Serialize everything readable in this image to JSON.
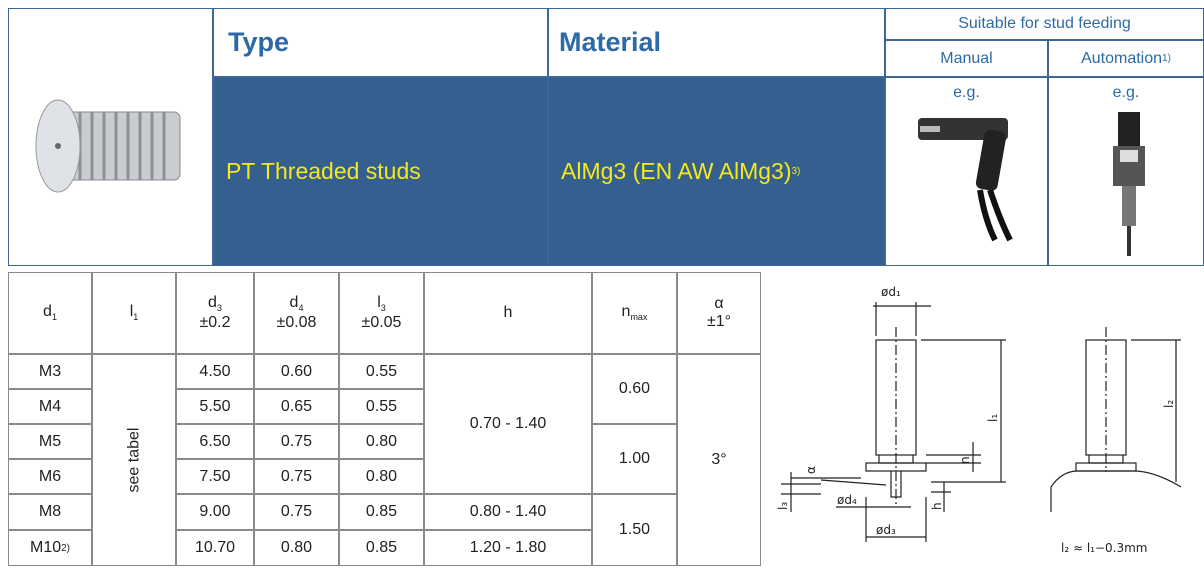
{
  "header": {
    "type_label": "Type",
    "material_label": "Material",
    "feeding_label": "Suitable for stud feeding",
    "manual_label": "Manual",
    "automation_label": "Automation",
    "automation_note": "1)",
    "type_value": "PT Threaded studs",
    "material_value": "AlMg3 (EN AW AlMg3)",
    "material_note": "3)",
    "example_manual": "e.g.",
    "example_automation": "e.g."
  },
  "table": {
    "columns": [
      {
        "symbol": "d",
        "sub": "1"
      },
      {
        "symbol": "l",
        "sub": "1"
      },
      {
        "symbol": "d",
        "sub": "3",
        "tol": "±0.2"
      },
      {
        "symbol": "d",
        "sub": "4",
        "tol": "±0.08"
      },
      {
        "symbol": "l",
        "sub": "3",
        "tol": "±0.05"
      },
      {
        "symbol": "h"
      },
      {
        "symbol": "n",
        "sub": "max"
      },
      {
        "symbol": "α",
        "tol": "±1°"
      }
    ],
    "l1_value": "see tabel",
    "rows": [
      {
        "d1": "M3",
        "d3": "4.50",
        "d4": "0.60",
        "l3": "0.55"
      },
      {
        "d1": "M4",
        "d3": "5.50",
        "d4": "0.65",
        "l3": "0.55"
      },
      {
        "d1": "M5",
        "d3": "6.50",
        "d4": "0.75",
        "l3": "0.80"
      },
      {
        "d1": "M6",
        "d3": "7.50",
        "d4": "0.75",
        "l3": "0.80"
      },
      {
        "d1": "M8",
        "d3": "9.00",
        "d4": "0.75",
        "l3": "0.85"
      },
      {
        "d1": "M10",
        "note": "2)",
        "d3": "10.70",
        "d4": "0.80",
        "l3": "0.85"
      }
    ],
    "h_groups": [
      "0.70 - 1.40",
      "0.80 - 1.40",
      "1.20 - 1.80"
    ],
    "n_groups": [
      "0.60",
      "1.00",
      "1.50"
    ],
    "alpha": "3°"
  },
  "diagram": {
    "d1": "ød₁",
    "l1": "l₁",
    "l2": "l₂",
    "n": "n",
    "alpha": "α",
    "h": "h",
    "l3": "l₃",
    "d4": "ød₄",
    "d3": "ød₃",
    "formula": "l₂ ≈ l₁−0.3mm"
  }
}
